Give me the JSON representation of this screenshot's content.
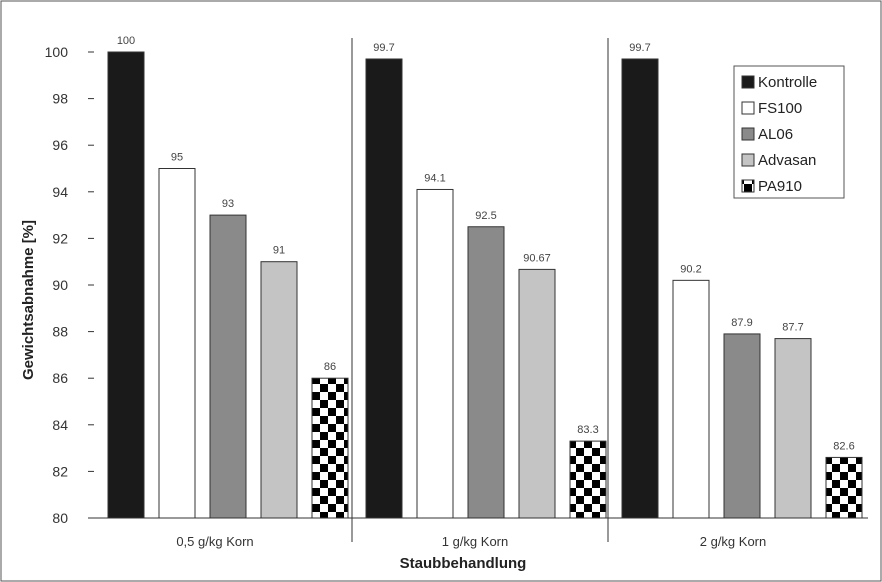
{
  "chart_data": {
    "type": "bar",
    "categories": [
      "0,5 g/kg Korn",
      "1 g/kg Korn",
      "2 g/kg Korn"
    ],
    "series": [
      {
        "name": "Kontrolle",
        "values": [
          100,
          99.7,
          99.7
        ],
        "labels": [
          "100",
          "99.7",
          "99.7"
        ],
        "fill": "#1a1a1a",
        "pattern": "solid"
      },
      {
        "name": "FS100",
        "values": [
          95,
          94.1,
          90.2
        ],
        "labels": [
          "95",
          "94.1",
          "90.2"
        ],
        "fill": "#ffffff",
        "pattern": "solid"
      },
      {
        "name": "AL06",
        "values": [
          93,
          92.5,
          87.9
        ],
        "labels": [
          "93",
          "92.5",
          "87.9"
        ],
        "fill": "#8a8a8a",
        "pattern": "solid"
      },
      {
        "name": "Advasan",
        "values": [
          91,
          90.67,
          87.7
        ],
        "labels": [
          "91",
          "90.67",
          "87.7"
        ],
        "fill": "#c4c4c4",
        "pattern": "solid"
      },
      {
        "name": "PA910",
        "values": [
          86,
          83.3,
          82.6
        ],
        "labels": [
          "86",
          "83.3",
          "82.6"
        ],
        "fill": "#000000",
        "pattern": "checker"
      }
    ],
    "xlabel": "Staubbehandlung",
    "ylabel": "Gewichtsabnahme [%]",
    "ylim": [
      80,
      100
    ],
    "yticks": [
      80,
      82,
      84,
      86,
      88,
      90,
      92,
      94,
      96,
      98,
      100
    ],
    "grid": false,
    "legend": "top-right"
  }
}
